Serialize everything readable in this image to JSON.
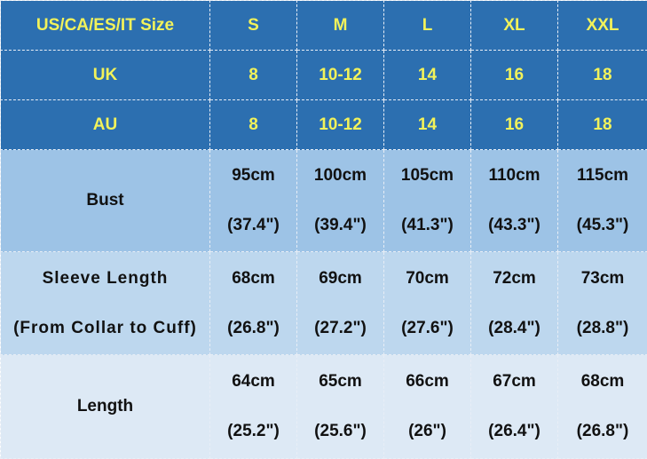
{
  "header": {
    "label": "US/CA/ES/IT Size",
    "values": [
      "S",
      "M",
      "L",
      "XL",
      "XXL"
    ]
  },
  "uk": {
    "label": "UK",
    "values": [
      "8",
      "10-12",
      "14",
      "16",
      "18"
    ]
  },
  "au": {
    "label": "AU",
    "values": [
      "8",
      "10-12",
      "14",
      "16",
      "18"
    ]
  },
  "bust": {
    "label": "Bust",
    "cm": [
      "95cm",
      "100cm",
      "105cm",
      "110cm",
      "115cm"
    ],
    "in": [
      "(37.4\")",
      "(39.4\")",
      "(41.3\")",
      "(43.3\")",
      "(45.3\")"
    ]
  },
  "sleeve": {
    "label": "Sleeve Length",
    "sublabel": "(From Collar to Cuff)",
    "cm": [
      "68cm",
      "69cm",
      "70cm",
      "72cm",
      "73cm"
    ],
    "in": [
      "(26.8\")",
      "(27.2\")",
      "(27.6\")",
      "(28.4\")",
      "(28.8\")"
    ]
  },
  "length": {
    "label": "Length",
    "cm": [
      "64cm",
      "65cm",
      "66cm",
      "67cm",
      "68cm"
    ],
    "in": [
      "(25.2\")",
      "(25.6\")",
      "(26\")",
      "(26.4\")",
      "(26.8\")"
    ]
  },
  "colors": {
    "header_bg": "#2c6fb0",
    "header_text": "#f2f25a",
    "bust_bg": "#9dc3e6",
    "sleeve_bg": "#bdd7ee",
    "length_bg": "#dde9f5"
  }
}
